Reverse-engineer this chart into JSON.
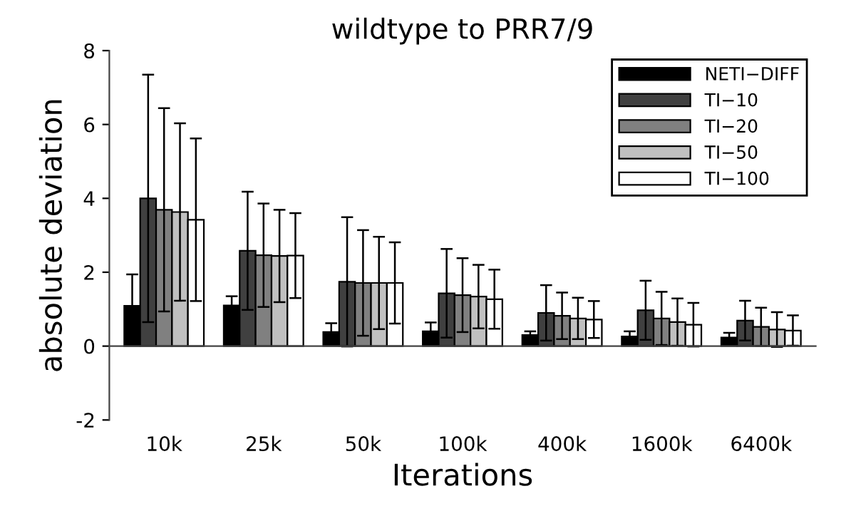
{
  "chart_data": {
    "type": "bar",
    "title": "wildtype to PRR7/9",
    "xlabel": "Iterations",
    "ylabel": "absolute deviation",
    "categories": [
      "10k",
      "25k",
      "50k",
      "100k",
      "400k",
      "1600k",
      "6400k"
    ],
    "ylim": [
      -2,
      8
    ],
    "yticks": [
      -2,
      0,
      2,
      4,
      6,
      8
    ],
    "legend": "top right",
    "series": [
      {
        "name": "NETI−DIFF",
        "color": "#000000",
        "values": [
          1.09,
          1.1,
          0.38,
          0.4,
          0.3,
          0.26,
          0.23
        ],
        "errors": [
          0.85,
          0.25,
          0.24,
          0.24,
          0.1,
          0.14,
          0.13
        ]
      },
      {
        "name": "TI−10",
        "color": "#404040",
        "values": [
          4.0,
          2.58,
          1.74,
          1.43,
          0.9,
          0.97,
          0.69
        ],
        "errors": [
          3.35,
          1.6,
          1.75,
          1.2,
          0.75,
          0.8,
          0.54
        ]
      },
      {
        "name": "TI−20",
        "color": "#808080",
        "values": [
          3.69,
          2.46,
          1.71,
          1.38,
          0.82,
          0.75,
          0.52
        ],
        "errors": [
          2.75,
          1.4,
          1.43,
          1.0,
          0.63,
          0.72,
          0.52
        ]
      },
      {
        "name": "TI−50",
        "color": "#c0c0c0",
        "values": [
          3.63,
          2.44,
          1.71,
          1.34,
          0.75,
          0.65,
          0.45
        ],
        "errors": [
          2.4,
          1.25,
          1.25,
          0.86,
          0.56,
          0.64,
          0.47
        ]
      },
      {
        "name": "TI−100",
        "color": "#ffffff",
        "values": [
          3.42,
          2.45,
          1.71,
          1.27,
          0.72,
          0.58,
          0.42
        ],
        "errors": [
          2.2,
          1.15,
          1.1,
          0.8,
          0.5,
          0.59,
          0.41
        ]
      }
    ]
  }
}
